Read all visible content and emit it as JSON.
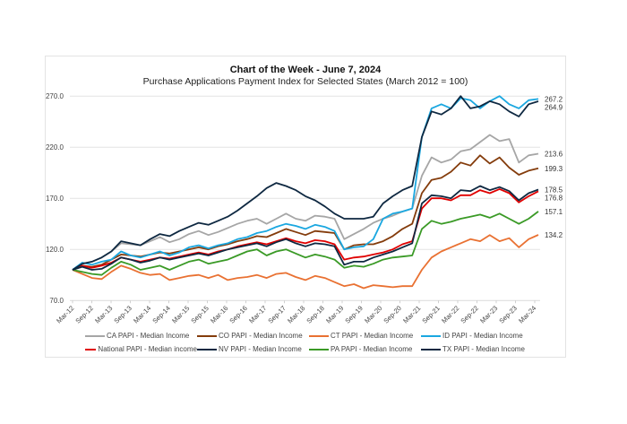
{
  "chart_data": {
    "type": "line",
    "title": "Chart of the Week - June 7, 2024",
    "subtitle": "Purchase Applications Payment Index for Selected States (March 2012 = 100)",
    "xlabel": "",
    "ylabel": "",
    "ylim": [
      70,
      280
    ],
    "yticks": [
      "270.0",
      "220.0",
      "170.0",
      "120.0",
      "70.0"
    ],
    "ytick_values": [
      270,
      220,
      170,
      120,
      70
    ],
    "xticks": [
      "Mar-12",
      "Sep-12",
      "Mar-13",
      "Sep-13",
      "Mar-14",
      "Sep-14",
      "Mar-15",
      "Sep-15",
      "Mar-16",
      "Sep-16",
      "Mar-17",
      "Sep-17",
      "Mar-18",
      "Sep-18",
      "Mar-19",
      "Sep-19",
      "Mar-20",
      "Sep-20",
      "Mar-21",
      "Sep-21",
      "Mar-22",
      "Sep-22",
      "Mar-23",
      "Sep-23",
      "Mar-24"
    ],
    "grid": true,
    "legend_position": "bottom",
    "x_frequency": "quarterly, Mar-12 to Mar-24",
    "series": [
      {
        "name": "CA PAPI - Median Income",
        "color": "#a6a6a6",
        "end_label": "213.6",
        "values": [
          100,
          106,
          108,
          112,
          118,
          126,
          125,
          124,
          128,
          132,
          127,
          130,
          135,
          138,
          134,
          137,
          141,
          145,
          148,
          150,
          145,
          150,
          155,
          150,
          148,
          153,
          152,
          150,
          130,
          135,
          140,
          146,
          150,
          153,
          157,
          160,
          192,
          210,
          205,
          208,
          216,
          218,
          225,
          232,
          226,
          228,
          205,
          212,
          213.6
        ]
      },
      {
        "name": "CO PAPI - Median Income",
        "color": "#843c0c",
        "end_label": "199.3",
        "values": [
          100,
          104,
          103,
          105,
          110,
          115,
          114,
          113,
          115,
          117,
          116,
          118,
          120,
          122,
          120,
          123,
          125,
          128,
          130,
          133,
          132,
          136,
          140,
          137,
          134,
          138,
          137,
          136,
          120,
          124,
          125,
          125,
          128,
          133,
          140,
          145,
          175,
          188,
          190,
          196,
          205,
          202,
          212,
          204,
          210,
          200,
          193,
          197,
          199.3
        ]
      },
      {
        "name": "CT PAPI - Median Income",
        "color": "#e97132",
        "end_label": "134.2",
        "values": [
          100,
          96,
          92,
          91,
          98,
          104,
          101,
          97,
          95,
          96,
          90,
          92,
          94,
          95,
          92,
          95,
          90,
          92,
          93,
          95,
          92,
          96,
          97,
          93,
          90,
          94,
          92,
          88,
          84,
          86,
          82,
          85,
          84,
          83,
          84,
          84,
          100,
          112,
          118,
          122,
          126,
          130,
          128,
          134,
          128,
          131,
          122,
          130,
          134.2
        ]
      },
      {
        "name": "ID PAPI - Median Income",
        "color": "#1aa7e0",
        "end_label": "267.2",
        "values": [
          100,
          107,
          105,
          108,
          110,
          118,
          114,
          112,
          115,
          118,
          114,
          117,
          122,
          124,
          121,
          124,
          126,
          130,
          132,
          136,
          138,
          142,
          145,
          143,
          140,
          144,
          142,
          138,
          120,
          122,
          123,
          130,
          150,
          155,
          157,
          160,
          230,
          258,
          262,
          258,
          268,
          266,
          258,
          265,
          270,
          262,
          258,
          266,
          267.2
        ]
      },
      {
        "name": "National PAPI - Median income",
        "color": "#e00000",
        "end_label": "176.8",
        "values": [
          100,
          104,
          102,
          104,
          107,
          112,
          110,
          108,
          110,
          112,
          111,
          113,
          115,
          117,
          115,
          118,
          120,
          123,
          125,
          127,
          125,
          128,
          131,
          128,
          126,
          129,
          128,
          125,
          110,
          112,
          113,
          115,
          117,
          120,
          125,
          128,
          160,
          170,
          170,
          168,
          173,
          173,
          178,
          175,
          179,
          175,
          166,
          172,
          176.8
        ]
      },
      {
        "name": "NV PAPI - Median Income",
        "color": "#0e2841",
        "end_label": "",
        "values": [
          100,
          106,
          108,
          112,
          118,
          128,
          126,
          124,
          130,
          135,
          133,
          138,
          142,
          146,
          144,
          148,
          152,
          158,
          165,
          172,
          180,
          185,
          182,
          178,
          172,
          168,
          162,
          155,
          150,
          150,
          150,
          152,
          165,
          172,
          178,
          182,
          230,
          255,
          252,
          258,
          270,
          258,
          260,
          265,
          262,
          255,
          250,
          262,
          264.9
        ]
      },
      {
        "name": "PA PAPI - Median Income",
        "color": "#3a9a26",
        "end_label": "157.1",
        "values": [
          100,
          98,
          96,
          95,
          102,
          108,
          105,
          100,
          102,
          104,
          100,
          104,
          108,
          110,
          106,
          108,
          110,
          114,
          118,
          120,
          114,
          118,
          120,
          116,
          112,
          115,
          113,
          110,
          102,
          104,
          103,
          106,
          110,
          112,
          113,
          114,
          140,
          148,
          145,
          147,
          150,
          152,
          154,
          151,
          155,
          150,
          145,
          150,
          157.1
        ]
      },
      {
        "name": "TX PAPI - Median Income",
        "color": "#0e2841",
        "end_label": "178.5",
        "values": [
          100,
          103,
          100,
          101,
          106,
          112,
          110,
          107,
          109,
          112,
          110,
          112,
          114,
          116,
          114,
          117,
          120,
          122,
          124,
          126,
          123,
          127,
          130,
          126,
          123,
          126,
          125,
          123,
          105,
          108,
          108,
          112,
          115,
          118,
          122,
          126,
          165,
          173,
          172,
          170,
          178,
          177,
          182,
          178,
          181,
          177,
          168,
          175,
          178.5
        ]
      }
    ],
    "end_labels_extra": [
      {
        "series": "NV PAPI - Median Income",
        "label": "264.9"
      }
    ]
  }
}
